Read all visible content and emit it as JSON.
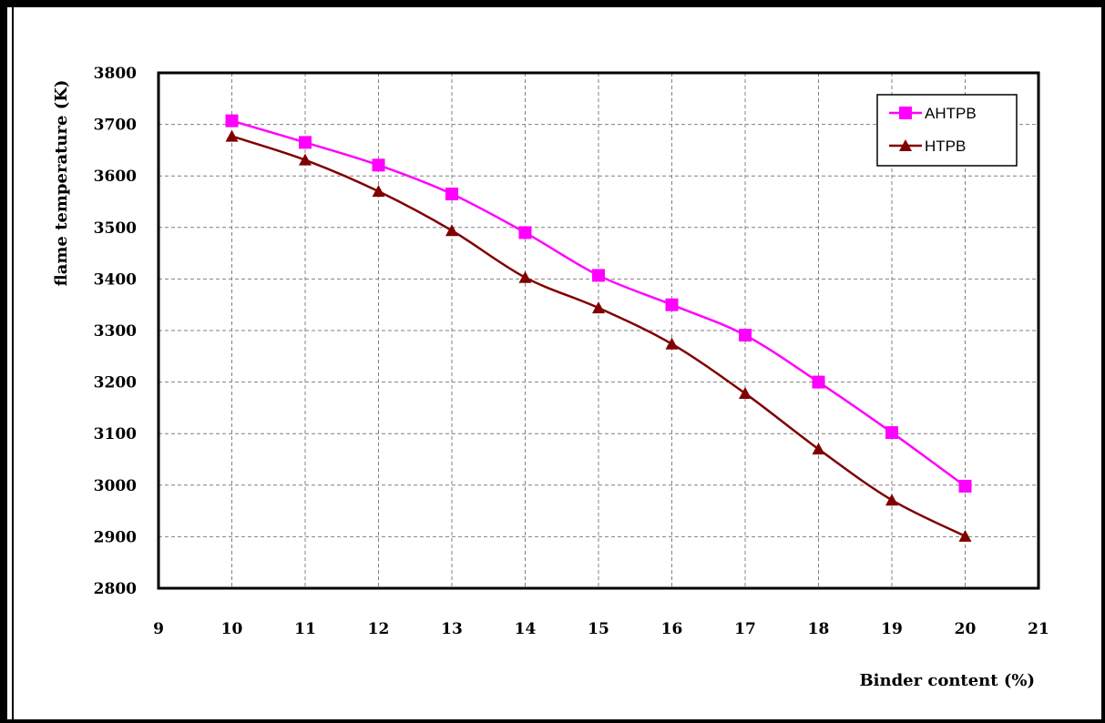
{
  "chart_data": {
    "type": "line",
    "title": "",
    "xlabel": "Binder content (%)",
    "ylabel": "flame temperature (K)",
    "xlim": [
      9,
      21
    ],
    "ylim": [
      2800,
      3800
    ],
    "xticks": [
      9,
      10,
      11,
      12,
      13,
      14,
      15,
      16,
      17,
      18,
      19,
      20,
      21
    ],
    "yticks": [
      2800,
      2900,
      3000,
      3100,
      3200,
      3300,
      3400,
      3500,
      3600,
      3700,
      3800
    ],
    "grid": true,
    "legend_position": "top-right",
    "x": [
      10,
      11,
      12,
      13,
      14,
      15,
      16,
      17,
      18,
      19,
      20
    ],
    "series": [
      {
        "name": "AHTPB",
        "color": "#ff00ff",
        "marker": "square",
        "values": [
          3707,
          3665,
          3621,
          3565,
          3490,
          3407,
          3350,
          3291,
          3200,
          3102,
          2998
        ]
      },
      {
        "name": "HTPB",
        "color": "#800000",
        "marker": "triangle",
        "values": [
          3677,
          3631,
          3570,
          3494,
          3403,
          3344,
          3274,
          3178,
          3070,
          2971,
          2901
        ]
      }
    ]
  }
}
